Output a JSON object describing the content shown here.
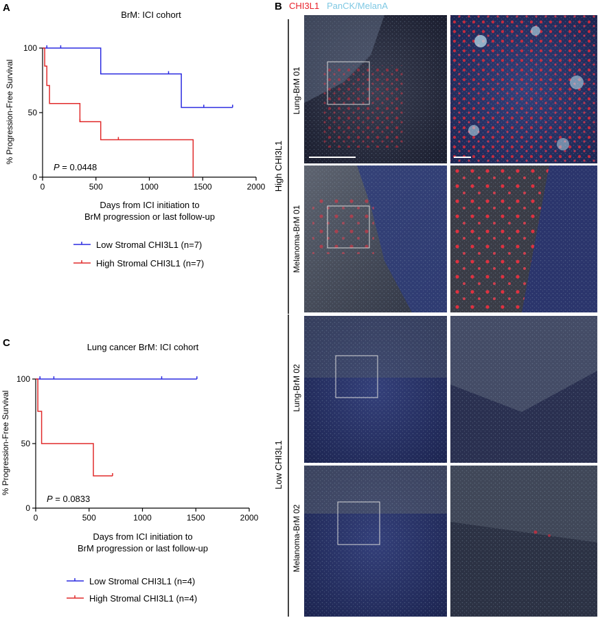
{
  "panel_labels": {
    "a": "A",
    "b": "B",
    "c": "C"
  },
  "panel_b": {
    "channel_1": "CHI3L1",
    "channel_2": "PanCK/MelanA",
    "channel_1_color": "#e8202a",
    "channel_2_color": "#7ec8e3",
    "group_high": "High CHI3L1",
    "group_low": "Low CHI3L1",
    "rows": [
      "Lung-BrM 01",
      "Melanoma-BrM 01",
      "Lung-BrM 02",
      "Melanoma-BrM 02"
    ]
  },
  "chart_data": [
    {
      "type": "line",
      "subtype": "kaplan-meier-step",
      "title": "BrM: ICI cohort",
      "ylabel": "% Progression-Free Survival",
      "xlabel_line1": "Days from ICI initiation to",
      "xlabel_line2": "BrM progression or last follow-up",
      "xlim": [
        0,
        2000
      ],
      "ylim": [
        0,
        100
      ],
      "xticks": [
        "0",
        "500",
        "1000",
        "1500",
        "2000"
      ],
      "yticks": [
        "0",
        "50",
        "100"
      ],
      "p_label": "P",
      "p_value": " = 0.0448",
      "legend_placement": "below",
      "series": [
        {
          "name": "Low Stromal CHI3L1 (n=7)",
          "color": "#2a2ae0",
          "steps": [
            [
              0,
              100
            ],
            [
              545,
              100
            ],
            [
              545,
              80
            ],
            [
              1300,
              80
            ],
            [
              1300,
              54
            ],
            [
              1780,
              54
            ]
          ],
          "censors": [
            [
              40,
              100
            ],
            [
              170,
              100
            ],
            [
              545,
              80
            ],
            [
              1180,
              80
            ],
            [
              1510,
              54
            ],
            [
              1780,
              54
            ]
          ]
        },
        {
          "name": "High Stromal CHI3L1 (n=7)",
          "color": "#e02a2a",
          "steps": [
            [
              0,
              100
            ],
            [
              20,
              100
            ],
            [
              20,
              86
            ],
            [
              40,
              86
            ],
            [
              40,
              71
            ],
            [
              65,
              71
            ],
            [
              65,
              57
            ],
            [
              350,
              57
            ],
            [
              350,
              43
            ],
            [
              545,
              43
            ],
            [
              545,
              29
            ],
            [
              1410,
              29
            ],
            [
              1410,
              0
            ]
          ],
          "censors": [
            [
              350,
              43
            ],
            [
              710,
              29
            ]
          ]
        }
      ]
    },
    {
      "type": "line",
      "subtype": "kaplan-meier-step",
      "title": "Lung cancer BrM: ICI cohort",
      "ylabel": "% Progression-Free Survival",
      "xlabel_line1": "Days from ICI initiation to",
      "xlabel_line2": "BrM progression or last follow-up",
      "xlim": [
        0,
        2000
      ],
      "ylim": [
        0,
        100
      ],
      "xticks": [
        "0",
        "500",
        "1000",
        "1500",
        "2000"
      ],
      "yticks": [
        "0",
        "50",
        "100"
      ],
      "p_label": "P",
      "p_value": " = 0.0833",
      "legend_placement": "below",
      "series": [
        {
          "name": "Low Stromal CHI3L1 (n=4)",
          "color": "#2a2ae0",
          "steps": [
            [
              0,
              100
            ],
            [
              1510,
              100
            ]
          ],
          "censors": [
            [
              40,
              100
            ],
            [
              170,
              100
            ],
            [
              1180,
              100
            ],
            [
              1510,
              100
            ]
          ]
        },
        {
          "name": "High Stromal CHI3L1 (n=4)",
          "color": "#e02a2a",
          "steps": [
            [
              0,
              100
            ],
            [
              20,
              100
            ],
            [
              20,
              75
            ],
            [
              55,
              75
            ],
            [
              55,
              50
            ],
            [
              540,
              50
            ],
            [
              540,
              25
            ],
            [
              720,
              25
            ]
          ],
          "censors": [
            [
              720,
              25
            ]
          ]
        }
      ]
    }
  ]
}
